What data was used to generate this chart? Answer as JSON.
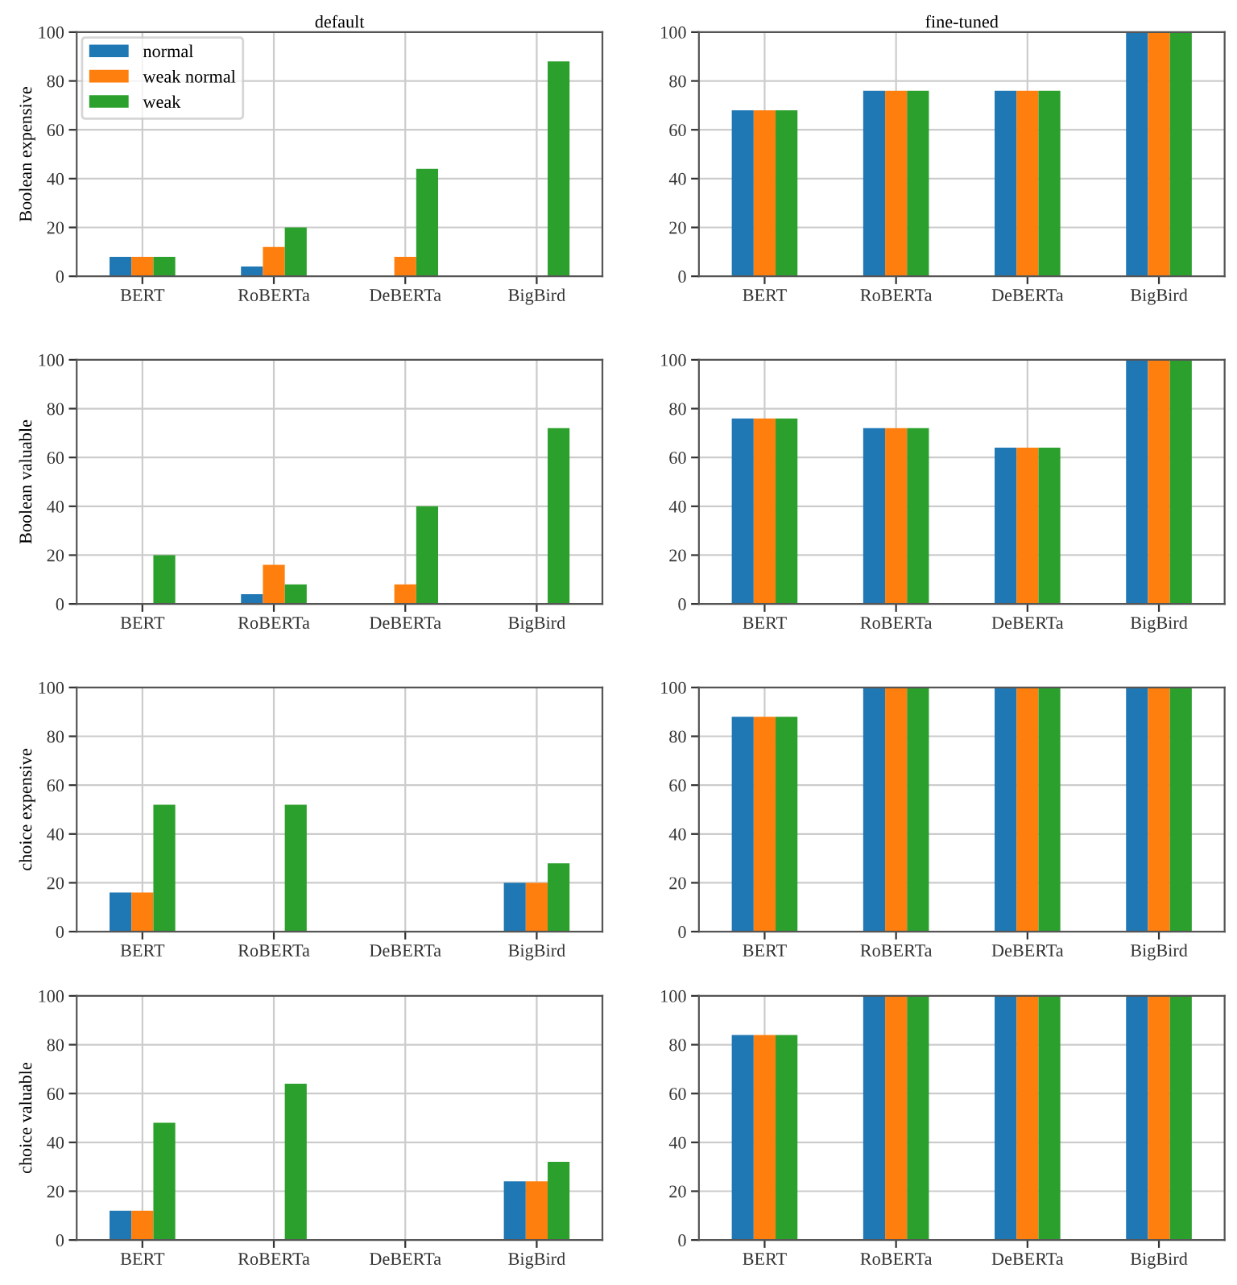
{
  "chart_data": [
    {
      "type": "bar",
      "title": "default",
      "ylabel": "Boolean expensive",
      "categories": [
        "BERT",
        "RoBERTa",
        "DeBERTa",
        "BigBird"
      ],
      "ylim": [
        0,
        100
      ],
      "yticks": [
        0,
        20,
        40,
        60,
        80,
        100
      ],
      "grid": true,
      "legend": "top left",
      "series": [
        {
          "name": "normal",
          "color": "#1f77b4",
          "values": [
            8,
            4,
            0,
            0
          ]
        },
        {
          "name": "weak normal",
          "color": "#ff7f0e",
          "values": [
            8,
            12,
            8,
            0
          ]
        },
        {
          "name": "weak",
          "color": "#2ca02c",
          "values": [
            8,
            20,
            44,
            88
          ]
        }
      ]
    },
    {
      "type": "bar",
      "title": "fine-tuned",
      "categories": [
        "BERT",
        "RoBERTa",
        "DeBERTa",
        "BigBird"
      ],
      "ylim": [
        0,
        100
      ],
      "yticks": [
        0,
        20,
        40,
        60,
        80,
        100
      ],
      "grid": true,
      "series": [
        {
          "color": "#1f77b4",
          "values": [
            68,
            76,
            76,
            100
          ]
        },
        {
          "color": "#ff7f0e",
          "values": [
            68,
            76,
            76,
            100
          ]
        },
        {
          "color": "#2ca02c",
          "values": [
            68,
            76,
            76,
            100
          ]
        }
      ]
    },
    {
      "type": "bar",
      "ylabel": "Boolean valuable",
      "categories": [
        "BERT",
        "RoBERTa",
        "DeBERTa",
        "BigBird"
      ],
      "ylim": [
        0,
        100
      ],
      "yticks": [
        0,
        20,
        40,
        60,
        80,
        100
      ],
      "grid": true,
      "series": [
        {
          "color": "#1f77b4",
          "values": [
            0,
            4,
            0,
            0
          ]
        },
        {
          "color": "#ff7f0e",
          "values": [
            0,
            16,
            8,
            0
          ]
        },
        {
          "color": "#2ca02c",
          "values": [
            20,
            8,
            40,
            72
          ]
        }
      ]
    },
    {
      "type": "bar",
      "categories": [
        "BERT",
        "RoBERTa",
        "DeBERTa",
        "BigBird"
      ],
      "ylim": [
        0,
        100
      ],
      "yticks": [
        0,
        20,
        40,
        60,
        80,
        100
      ],
      "grid": true,
      "series": [
        {
          "color": "#1f77b4",
          "values": [
            76,
            72,
            64,
            100
          ]
        },
        {
          "color": "#ff7f0e",
          "values": [
            76,
            72,
            64,
            100
          ]
        },
        {
          "color": "#2ca02c",
          "values": [
            76,
            72,
            64,
            100
          ]
        }
      ]
    },
    {
      "type": "bar",
      "ylabel": "choice expensive",
      "categories": [
        "BERT",
        "RoBERTa",
        "DeBERTa",
        "BigBird"
      ],
      "ylim": [
        0,
        100
      ],
      "yticks": [
        0,
        20,
        40,
        60,
        80,
        100
      ],
      "grid": true,
      "series": [
        {
          "color": "#1f77b4",
          "values": [
            16,
            0,
            0,
            20
          ]
        },
        {
          "color": "#ff7f0e",
          "values": [
            16,
            0,
            0,
            20
          ]
        },
        {
          "color": "#2ca02c",
          "values": [
            52,
            52,
            0,
            28
          ]
        }
      ]
    },
    {
      "type": "bar",
      "categories": [
        "BERT",
        "RoBERTa",
        "DeBERTa",
        "BigBird"
      ],
      "ylim": [
        0,
        100
      ],
      "yticks": [
        0,
        20,
        40,
        60,
        80,
        100
      ],
      "grid": true,
      "series": [
        {
          "color": "#1f77b4",
          "values": [
            88,
            100,
            100,
            100
          ]
        },
        {
          "color": "#ff7f0e",
          "values": [
            88,
            100,
            100,
            100
          ]
        },
        {
          "color": "#2ca02c",
          "values": [
            88,
            100,
            100,
            100
          ]
        }
      ]
    },
    {
      "type": "bar",
      "ylabel": "choice valuable",
      "categories": [
        "BERT",
        "RoBERTa",
        "DeBERTa",
        "BigBird"
      ],
      "ylim": [
        0,
        100
      ],
      "yticks": [
        0,
        20,
        40,
        60,
        80,
        100
      ],
      "grid": true,
      "series": [
        {
          "color": "#1f77b4",
          "values": [
            12,
            0,
            0,
            24
          ]
        },
        {
          "color": "#ff7f0e",
          "values": [
            12,
            0,
            0,
            24
          ]
        },
        {
          "color": "#2ca02c",
          "values": [
            48,
            64,
            0,
            32
          ]
        }
      ]
    },
    {
      "type": "bar",
      "categories": [
        "BERT",
        "RoBERTa",
        "DeBERTa",
        "BigBird"
      ],
      "ylim": [
        0,
        100
      ],
      "yticks": [
        0,
        20,
        40,
        60,
        80,
        100
      ],
      "grid": true,
      "series": [
        {
          "color": "#1f77b4",
          "values": [
            84,
            100,
            100,
            100
          ]
        },
        {
          "color": "#ff7f0e",
          "values": [
            84,
            100,
            100,
            100
          ]
        },
        {
          "color": "#2ca02c",
          "values": [
            84,
            100,
            100,
            100
          ]
        }
      ]
    }
  ]
}
